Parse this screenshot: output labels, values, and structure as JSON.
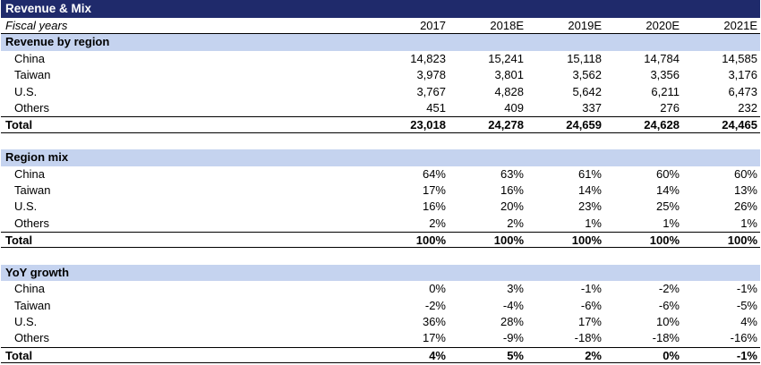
{
  "title": "Revenue & Mix",
  "fiscal_label": "Fiscal years",
  "years": [
    "2017",
    "2018E",
    "2019E",
    "2020E",
    "2021E"
  ],
  "sections": [
    {
      "heading": "Revenue by region",
      "rows": [
        {
          "label": "China",
          "values": [
            "14,823",
            "15,241",
            "15,118",
            "14,784",
            "14,585"
          ]
        },
        {
          "label": "Taiwan",
          "values": [
            "3,978",
            "3,801",
            "3,562",
            "3,356",
            "3,176"
          ]
        },
        {
          "label": "U.S.",
          "values": [
            "3,767",
            "4,828",
            "5,642",
            "6,211",
            "6,473"
          ]
        },
        {
          "label": "Others",
          "values": [
            "451",
            "409",
            "337",
            "276",
            "232"
          ]
        }
      ],
      "total": {
        "label": "Total",
        "values": [
          "23,018",
          "24,278",
          "24,659",
          "24,628",
          "24,465"
        ]
      }
    },
    {
      "heading": "Region mix",
      "rows": [
        {
          "label": "China",
          "values": [
            "64%",
            "63%",
            "61%",
            "60%",
            "60%"
          ]
        },
        {
          "label": "Taiwan",
          "values": [
            "17%",
            "16%",
            "14%",
            "14%",
            "13%"
          ]
        },
        {
          "label": "U.S.",
          "values": [
            "16%",
            "20%",
            "23%",
            "25%",
            "26%"
          ]
        },
        {
          "label": "Others",
          "values": [
            "2%",
            "2%",
            "1%",
            "1%",
            "1%"
          ]
        }
      ],
      "total": {
        "label": "Total",
        "values": [
          "100%",
          "100%",
          "100%",
          "100%",
          "100%"
        ]
      }
    },
    {
      "heading": "YoY growth",
      "rows": [
        {
          "label": "China",
          "values": [
            "0%",
            "3%",
            "-1%",
            "-2%",
            "-1%"
          ]
        },
        {
          "label": "Taiwan",
          "values": [
            "-2%",
            "-4%",
            "-6%",
            "-6%",
            "-5%"
          ]
        },
        {
          "label": "U.S.",
          "values": [
            "36%",
            "28%",
            "17%",
            "10%",
            "4%"
          ]
        },
        {
          "label": "Others",
          "values": [
            "17%",
            "-9%",
            "-18%",
            "-18%",
            "-16%"
          ]
        }
      ],
      "total": {
        "label": "Total",
        "values": [
          "4%",
          "5%",
          "2%",
          "0%",
          "-1%"
        ]
      }
    }
  ]
}
